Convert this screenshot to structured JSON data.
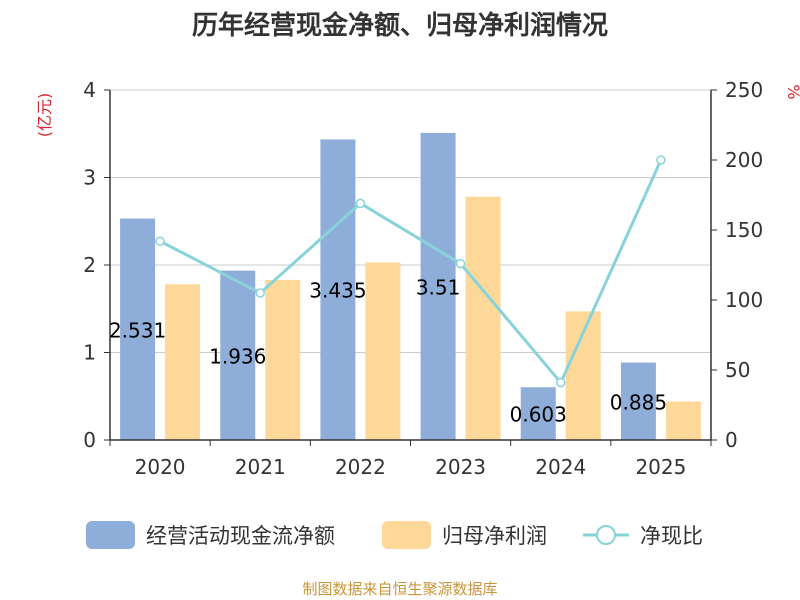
{
  "chart_data": {
    "type": "bar",
    "title": "历年经营现金净额、归母净利润情况",
    "categories": [
      "2020",
      "2021",
      "2022",
      "2023",
      "2024",
      "2025"
    ],
    "series": [
      {
        "name": "经营活动现金流净额",
        "type": "bar",
        "axis": "left",
        "color": "#8eadd9",
        "values": [
          2.531,
          1.936,
          3.435,
          3.51,
          0.603,
          0.885
        ]
      },
      {
        "name": "归母净利润",
        "type": "bar",
        "axis": "left",
        "color": "#fdd899",
        "values": [
          1.78,
          1.83,
          2.03,
          2.78,
          1.47,
          0.44
        ]
      },
      {
        "name": "净现比",
        "type": "line",
        "axis": "right",
        "color": "#88d3da",
        "values": [
          142,
          105,
          169,
          126,
          41,
          200
        ]
      }
    ],
    "data_labels": [
      "2.531",
      "1.936",
      "3.435",
      "3.51",
      "0.603",
      "0.885"
    ],
    "y_left": {
      "label": "(亿元)",
      "ylim": [
        0,
        4
      ],
      "ticks": [
        "0",
        "1",
        "2",
        "3",
        "4"
      ]
    },
    "y_right": {
      "label": "%",
      "ylim": [
        0,
        250
      ],
      "ticks": [
        "0",
        "50",
        "100",
        "150",
        "200",
        "250"
      ]
    },
    "grid": true,
    "legend_position": "bottom"
  },
  "source": "制图数据来自恒生聚源数据库"
}
